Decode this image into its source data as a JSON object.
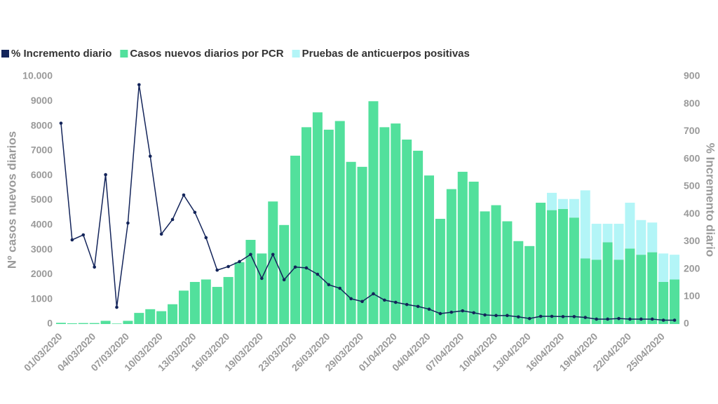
{
  "chart_data": {
    "type": "bar",
    "categories": [
      "01/03/2020",
      null,
      null,
      "04/03/2020",
      null,
      null,
      "07/03/2020",
      null,
      null,
      "10/03/2020",
      null,
      null,
      "13/03/2020",
      null,
      null,
      "16/03/2020",
      null,
      null,
      "19/03/2020",
      null,
      null,
      "23/03/2020",
      null,
      null,
      "26/03/2020",
      null,
      null,
      "29/03/2020",
      null,
      null,
      "01/04/2020",
      null,
      null,
      "04/04/2020",
      null,
      null,
      "07/04/2020",
      null,
      null,
      "10/04/2020",
      null,
      null,
      "13/04/2020",
      null,
      null,
      "16/04/2020",
      null,
      null,
      "19/04/2020",
      null,
      null,
      "22/04/2020",
      null,
      null,
      "25/04/2020",
      null
    ],
    "series": [
      {
        "name": "% Incremento diario",
        "type": "line",
        "axis": "y2",
        "color": "#13245a",
        "values": [
          730,
          306,
          324,
          207,
          543,
          61,
          367,
          870,
          610,
          327,
          380,
          469,
          406,
          314,
          196,
          209,
          227,
          253,
          166,
          253,
          161,
          207,
          204,
          181,
          143,
          130,
          92,
          82,
          110,
          87,
          79,
          71,
          64,
          54,
          38,
          43,
          48,
          41,
          33,
          31,
          31,
          26,
          20,
          28,
          28,
          27,
          27,
          24,
          18,
          18,
          20,
          18,
          18,
          18,
          14,
          14
        ]
      },
      {
        "name": "Casos nuevos diarios por PCR",
        "type": "bar",
        "color": "#52e09c",
        "values": [
          50,
          30,
          40,
          40,
          130,
          20,
          130,
          450,
          600,
          520,
          800,
          1350,
          1700,
          1800,
          1500,
          1900,
          2500,
          3400,
          2850,
          4950,
          4000,
          6800,
          7950,
          8550,
          7850,
          8200,
          6550,
          6350,
          9000,
          7950,
          8100,
          7450,
          7000,
          6000,
          4250,
          5450,
          6150,
          5750,
          4550,
          4800,
          4150,
          3350,
          3150,
          4900,
          4600,
          4650,
          4300,
          2650,
          2600,
          3300,
          2600,
          3050,
          2800,
          2900,
          1700,
          1800
        ]
      },
      {
        "name": "Pruebas de anticuerpos positivas",
        "type": "bar",
        "color": "#b3f5f7",
        "values": [
          0,
          0,
          0,
          0,
          0,
          0,
          0,
          0,
          0,
          0,
          0,
          0,
          0,
          0,
          0,
          0,
          0,
          0,
          0,
          0,
          0,
          0,
          0,
          0,
          0,
          0,
          0,
          0,
          0,
          0,
          0,
          0,
          0,
          0,
          0,
          0,
          0,
          0,
          0,
          0,
          0,
          0,
          0,
          0,
          700,
          400,
          750,
          2750,
          1450,
          750,
          1450,
          1850,
          1400,
          1200,
          1150,
          1000
        ]
      }
    ],
    "y_label": "Nº casos nuevos diarios",
    "y2_label": "% Incremento diario",
    "ylim": [
      0,
      10000
    ],
    "yticks": [
      0,
      1000,
      2000,
      3000,
      4000,
      5000,
      6000,
      7000,
      8000,
      9000,
      {
        "value": 10000,
        "label": "10.000"
      }
    ],
    "y2lim": [
      0,
      900
    ],
    "y2ticks": [
      0,
      100,
      200,
      300,
      400,
      500,
      600,
      700,
      800,
      900
    ],
    "grid": false,
    "legend": "top-left"
  }
}
